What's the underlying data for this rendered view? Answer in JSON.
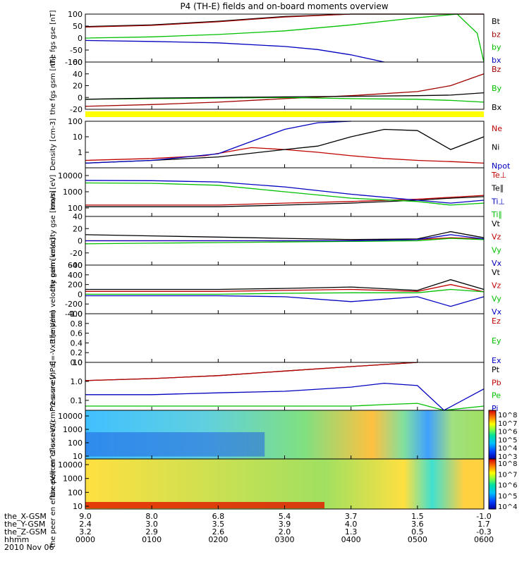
{
  "title": "P4 (TH-E) fields and on-board moments overview",
  "x_axis": {
    "row_labels": [
      "the_X-GSM",
      "the_Y-GSM",
      "the_Z-GSM",
      "hhmm",
      "2010 Nov 06"
    ],
    "rows": [
      [
        "9.0",
        "8.0",
        "6.8",
        "5.4",
        "3.7",
        "1.5",
        "-1.0"
      ],
      [
        "2.4",
        "3.0",
        "3.5",
        "3.9",
        "4.0",
        "3.6",
        "1.7"
      ],
      [
        "3.2",
        "2.9",
        "2.6",
        "2.0",
        "1.3",
        "0.5",
        "-0.3"
      ],
      [
        "0000",
        "0100",
        "0200",
        "0300",
        "0400",
        "0500",
        "0600"
      ]
    ]
  },
  "colorbars": {
    "top_labels": [
      "10^8",
      "10^7",
      "10^6",
      "10^5",
      "10^4",
      "10^3"
    ],
    "bottom_labels": [
      "10^8",
      "10^7",
      "10^6",
      "10^5",
      "10^4"
    ]
  },
  "chart_data": [
    {
      "type": "line",
      "ylabel": "the fgs gse [nT]",
      "ylim": [
        -100,
        100
      ],
      "yticks": [
        "100",
        "50",
        "0",
        "-50",
        "-100"
      ],
      "series": [
        {
          "name": "Bt",
          "color": "#000000",
          "x": [
            0,
            1,
            2,
            3,
            4,
            5,
            6
          ],
          "y": [
            48,
            55,
            70,
            90,
            100,
            100,
            100
          ]
        },
        {
          "name": "bz",
          "color": "#a00000",
          "x": [
            0,
            1,
            2,
            3,
            4,
            5,
            6
          ],
          "y": [
            46,
            53,
            68,
            88,
            100,
            100,
            100
          ]
        },
        {
          "name": "by",
          "color": "#00c000",
          "x": [
            0,
            1,
            2,
            3,
            4,
            5,
            5.6,
            5.9,
            6
          ],
          "y": [
            0,
            5,
            15,
            30,
            55,
            85,
            100,
            20,
            -100
          ]
        },
        {
          "name": "bx",
          "color": "#0000c0",
          "x": [
            0,
            1,
            2,
            3,
            3.5,
            4,
            4.5
          ],
          "y": [
            -10,
            -14,
            -20,
            -35,
            -48,
            -70,
            -100
          ]
        }
      ]
    },
    {
      "type": "line",
      "ylabel": "the fgs gsm [nT]",
      "ylim": [
        -20,
        60
      ],
      "yticks": [
        "60",
        "40",
        "20",
        "0",
        "-20"
      ],
      "series": [
        {
          "name": "Bz",
          "color": "#a00000",
          "x": [
            0,
            1,
            2,
            3,
            4,
            5,
            5.5,
            6
          ],
          "y": [
            -15,
            -12,
            -8,
            -2,
            3,
            10,
            20,
            40
          ]
        },
        {
          "name": "By",
          "color": "#00c000",
          "x": [
            0,
            1,
            2,
            3,
            4,
            5,
            5.5,
            6
          ],
          "y": [
            -3,
            -2,
            -1,
            0,
            -2,
            -3,
            -5,
            -8
          ]
        },
        {
          "name": "Bx",
          "color": "#000000",
          "x": [
            0,
            1,
            2,
            3,
            4,
            5,
            5.5,
            6
          ],
          "y": [
            -3,
            -1,
            0,
            1,
            2,
            3,
            4,
            8
          ]
        }
      ]
    },
    {
      "type": "line",
      "ylabel": "Density [cm-3]",
      "ylim": [
        0.1,
        100
      ],
      "yscale": "log",
      "yticks": [
        "100",
        "10",
        "1"
      ],
      "series": [
        {
          "name": "Ne",
          "color": "#c00000",
          "x": [
            0,
            1,
            1.8,
            2.5,
            3,
            3.5,
            4,
            4.5,
            5,
            5.5,
            6
          ],
          "y": [
            0.3,
            0.4,
            0.6,
            2,
            1.5,
            1,
            0.6,
            0.4,
            0.3,
            0.25,
            0.2
          ]
        },
        {
          "name": "Ni",
          "color": "#000000",
          "x": [
            0,
            1,
            2,
            3,
            3.5,
            4,
            4.5,
            5,
            5.5,
            6
          ],
          "y": [
            0.2,
            0.3,
            0.5,
            1.5,
            2.5,
            10,
            30,
            25,
            1.5,
            10
          ]
        },
        {
          "name": "Npot",
          "color": "#0000c0",
          "x": [
            0,
            1,
            2,
            2.5,
            3,
            3.5,
            4
          ],
          "y": [
            0.2,
            0.3,
            0.8,
            5,
            30,
            80,
            100
          ]
        }
      ]
    },
    {
      "type": "line",
      "ylabel": "mom [eV]",
      "ylim": [
        30,
        30000
      ],
      "yscale": "log",
      "yticks": [
        "10000",
        "1000",
        "100"
      ],
      "series": [
        {
          "name": "Te⊥",
          "color": "#c00000",
          "x": [
            0,
            1,
            2,
            3,
            4,
            5,
            5.5,
            6
          ],
          "y": [
            150,
            150,
            150,
            200,
            250,
            350,
            450,
            600
          ]
        },
        {
          "name": "Te∥",
          "color": "#000000",
          "x": [
            0,
            1,
            2,
            3,
            4,
            5,
            5.5,
            6
          ],
          "y": [
            120,
            120,
            120,
            150,
            200,
            300,
            400,
            500
          ]
        },
        {
          "name": "Ti⊥",
          "color": "#0000c0",
          "x": [
            0,
            1,
            2,
            3,
            4,
            5,
            5.5,
            6
          ],
          "y": [
            5000,
            4800,
            4000,
            2000,
            700,
            300,
            200,
            300
          ]
        },
        {
          "name": "Ti∥",
          "color": "#00c000",
          "x": [
            0,
            1,
            2,
            3,
            4,
            5,
            5.5,
            6
          ],
          "y": [
            3500,
            3300,
            2500,
            1000,
            400,
            250,
            150,
            200
          ]
        }
      ]
    },
    {
      "type": "line",
      "ylabel": "the peim velocity gse [km/s]",
      "ylim": [
        -40,
        40
      ],
      "yticks": [
        "40",
        "20",
        "0",
        "-20",
        "-40"
      ],
      "series": [
        {
          "name": "Vt",
          "color": "#000000",
          "x": [
            0,
            1,
            2,
            3,
            4,
            5,
            5.5,
            6
          ],
          "y": [
            10,
            8,
            6,
            4,
            2,
            3,
            15,
            5
          ]
        },
        {
          "name": "Vz",
          "color": "#c00000",
          "x": [
            0,
            1,
            2,
            3,
            4,
            5,
            5.5,
            6
          ],
          "y": [
            0,
            0,
            0,
            0,
            0,
            2,
            5,
            3
          ]
        },
        {
          "name": "Vy",
          "color": "#00c000",
          "x": [
            0,
            1,
            2,
            3,
            4,
            5,
            5.5,
            6
          ],
          "y": [
            -5,
            -4,
            -3,
            -2,
            -1,
            0,
            4,
            2
          ]
        },
        {
          "name": "Vx",
          "color": "#0000c0",
          "x": [
            0,
            1,
            2,
            3,
            4,
            5,
            5.5,
            6
          ],
          "y": [
            0,
            0,
            0,
            0,
            0,
            2,
            10,
            3
          ]
        }
      ]
    },
    {
      "type": "line",
      "ylabel": "the peim velocity gsm [km/s]",
      "ylim": [
        -400,
        600
      ],
      "yticks": [
        "600",
        "400",
        "200",
        "0",
        "-200",
        "-400"
      ],
      "series": [
        {
          "name": "Vt",
          "color": "#000000",
          "x": [
            0,
            1,
            2,
            3,
            4,
            5,
            5.5,
            6
          ],
          "y": [
            100,
            100,
            100,
            120,
            150,
            80,
            300,
            100
          ]
        },
        {
          "name": "Vz",
          "color": "#c00000",
          "x": [
            0,
            1,
            2,
            3,
            4,
            5,
            5.5,
            6
          ],
          "y": [
            60,
            60,
            60,
            80,
            100,
            60,
            200,
            50
          ]
        },
        {
          "name": "Vy",
          "color": "#00c000",
          "x": [
            0,
            1,
            2,
            3,
            4,
            5,
            5.5,
            6
          ],
          "y": [
            0,
            0,
            0,
            20,
            30,
            30,
            100,
            50
          ]
        },
        {
          "name": "Vx",
          "color": "#0000c0",
          "x": [
            0,
            1,
            2,
            3,
            4,
            5,
            5.5,
            6
          ],
          "y": [
            -30,
            -30,
            -30,
            -50,
            -150,
            -50,
            -250,
            -50
          ]
        }
      ]
    },
    {
      "type": "line",
      "ylabel": "E=-VxB [mV/m]",
      "ylim": [
        0,
        1
      ],
      "yticks": [
        "1.0",
        "0.8",
        "0.6",
        "0.4",
        "0.2",
        "0.0"
      ],
      "series": [
        {
          "name": "Ez",
          "color": "#c00000",
          "x": [],
          "y": []
        },
        {
          "name": "Ey",
          "color": "#00c000",
          "x": [],
          "y": []
        },
        {
          "name": "Ex",
          "color": "#0000c0",
          "x": [],
          "y": []
        }
      ]
    },
    {
      "type": "line",
      "ylabel": "Pressure [nPa]",
      "ylim": [
        0.03,
        10
      ],
      "yscale": "log",
      "yticks": [
        "10",
        "1.0",
        "0.1"
      ],
      "series": [
        {
          "name": "Pt",
          "color": "#000000",
          "x": [
            0,
            1,
            2,
            3,
            4,
            5
          ],
          "y": [
            1.1,
            1.4,
            2,
            3.5,
            6,
            10
          ]
        },
        {
          "name": "Pb",
          "color": "#c00000",
          "x": [
            0,
            1,
            2,
            3,
            4,
            5
          ],
          "y": [
            1.1,
            1.4,
            2,
            3.5,
            6,
            10
          ]
        },
        {
          "name": "Pe",
          "color": "#00c000",
          "x": [
            0,
            1,
            2,
            3,
            4,
            4.5,
            5,
            5.4,
            6
          ],
          "y": [
            0.05,
            0.05,
            0.05,
            0.05,
            0.05,
            0.06,
            0.07,
            0.03,
            0.05
          ]
        },
        {
          "name": "Pi",
          "color": "#0000c0",
          "x": [
            0,
            1,
            2,
            3,
            4,
            4.5,
            5,
            5.4,
            6
          ],
          "y": [
            0.2,
            0.2,
            0.25,
            0.3,
            0.5,
            0.8,
            0.6,
            0.03,
            0.4
          ]
        }
      ]
    },
    {
      "type": "heatmap",
      "ylabel": "the peir en eflux eV/(cm^2-s-sr-eV)",
      "yscale": "log",
      "yticks": [
        "10000",
        "1000",
        "100",
        "10"
      ]
    },
    {
      "type": "heatmap",
      "ylabel": "the peer en eflux eV/(cm^2-s-sr-eV)",
      "yscale": "log",
      "yticks": [
        "10000",
        "1000",
        "100",
        "10"
      ]
    }
  ]
}
